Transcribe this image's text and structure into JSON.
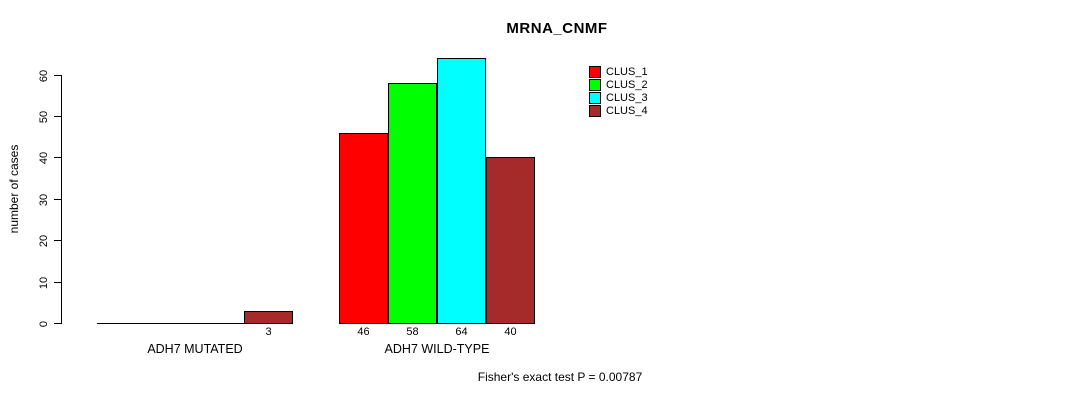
{
  "chart_data": {
    "type": "bar",
    "title": "MRNA_CNMF",
    "ylabel": "number of cases",
    "xlabel": "",
    "ylim": [
      0,
      60
    ],
    "yticks": [
      0,
      10,
      20,
      30,
      40,
      50,
      60
    ],
    "categories": [
      "ADH7 MUTATED",
      "ADH7 WILD-TYPE"
    ],
    "series": [
      {
        "name": "CLUS_1",
        "color": "#ff0000",
        "values": [
          0,
          46
        ]
      },
      {
        "name": "CLUS_2",
        "color": "#00ff00",
        "values": [
          0,
          58
        ]
      },
      {
        "name": "CLUS_3",
        "color": "#00ffff",
        "values": [
          0,
          64
        ]
      },
      {
        "name": "CLUS_4",
        "color": "#a52a2a",
        "values": [
          3,
          40
        ]
      }
    ],
    "bar_value_labels": [
      "3",
      "46",
      "58",
      "64",
      "40"
    ],
    "legend_position": "top-right",
    "grid": false,
    "footnote": "Fisher's exact test P = 0.00787"
  }
}
